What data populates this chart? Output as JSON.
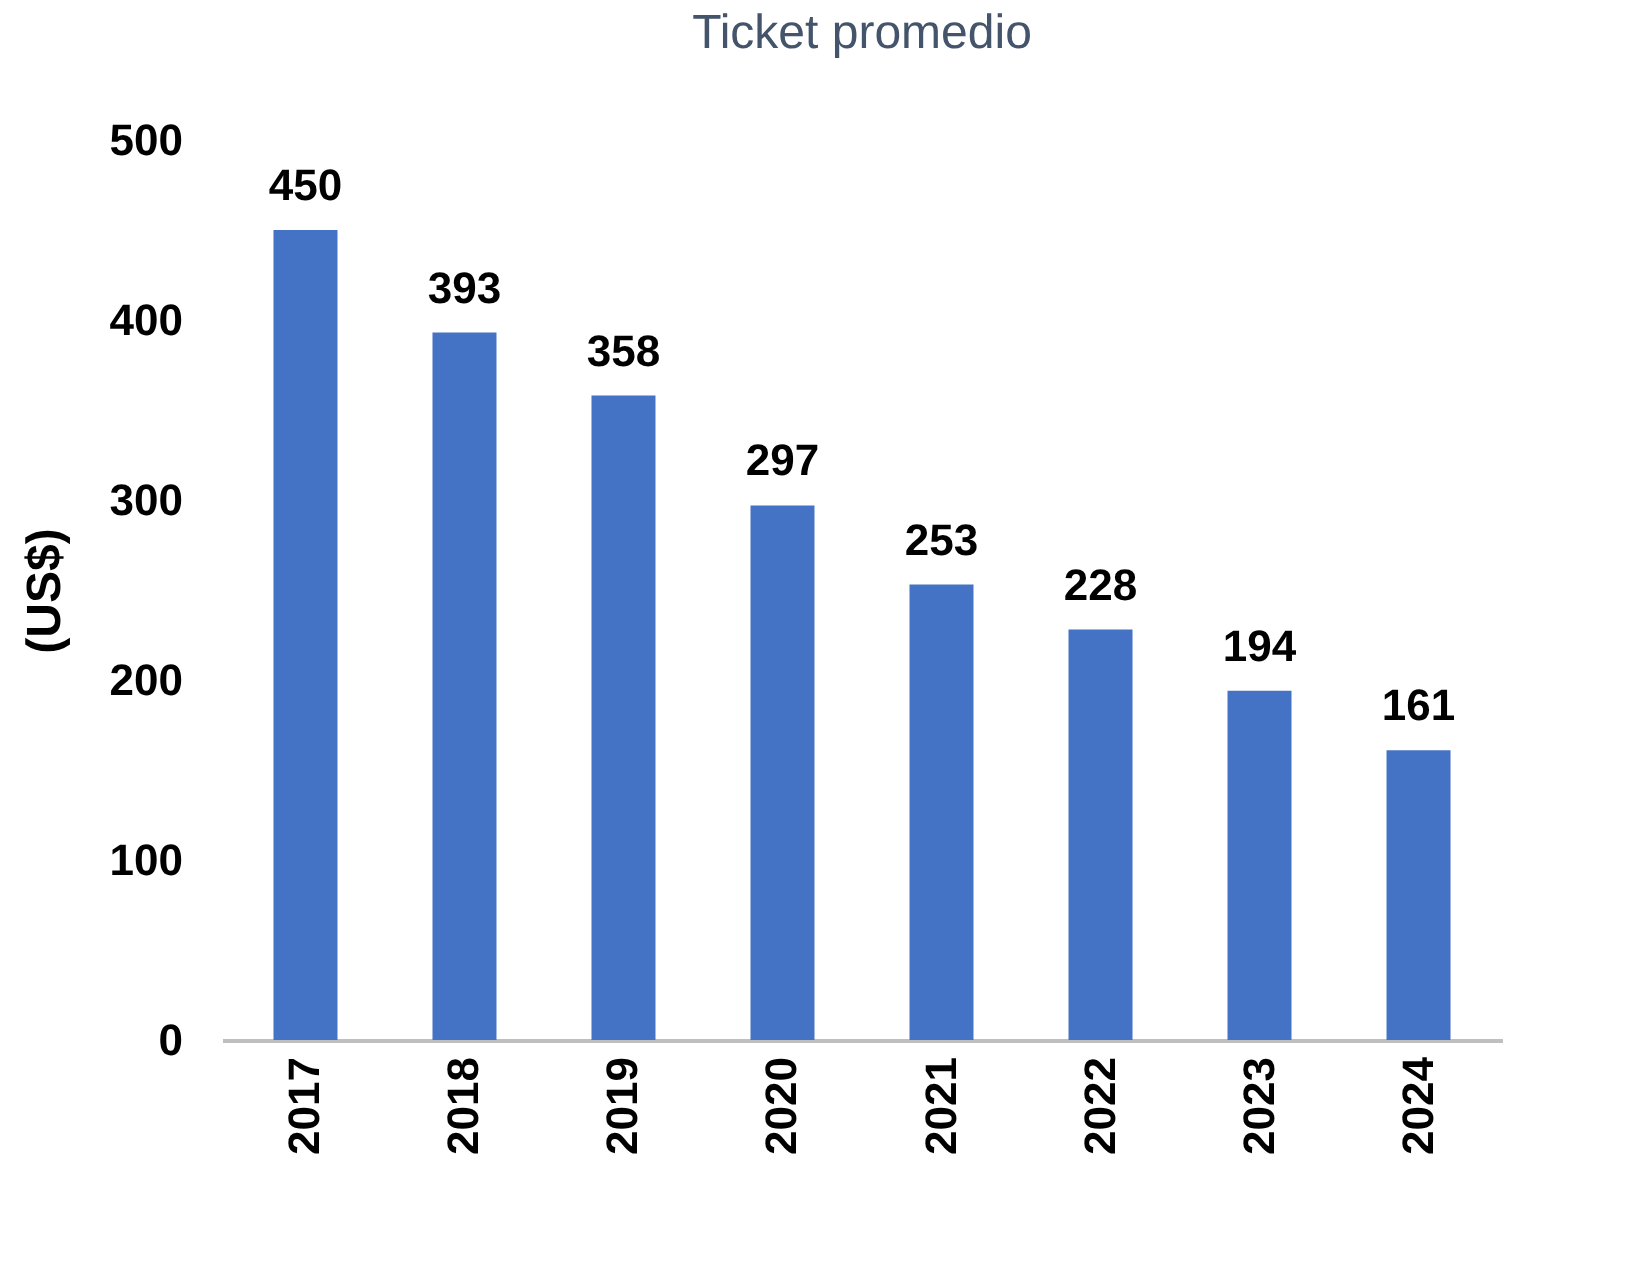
{
  "chart_data": {
    "type": "bar",
    "title": "Ticket promedio",
    "ylabel": "(US$)",
    "categories": [
      "2017",
      "2018",
      "2019",
      "2020",
      "2021",
      "2022",
      "2023",
      "2024"
    ],
    "values": [
      450,
      393,
      358,
      297,
      253,
      228,
      194,
      161
    ],
    "color": "#4472c4",
    "ylim": [
      0,
      500
    ],
    "yticks": [
      0,
      100,
      200,
      300,
      400,
      500
    ],
    "grid": false,
    "data_labels": true
  }
}
